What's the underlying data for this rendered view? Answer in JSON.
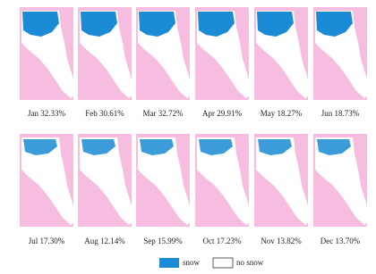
{
  "panels": [
    {
      "label": "Jan 32.33%"
    },
    {
      "label": "Feb 30.61%"
    },
    {
      "label": "Mar 32.72%"
    },
    {
      "label": "Apr 29.91%"
    },
    {
      "label": "May 18.27%"
    },
    {
      "label": "Jun 18.73%"
    },
    {
      "label": "Jul 17.30%"
    },
    {
      "label": "Aug 12.14%"
    },
    {
      "label": "Sep 15.99%"
    },
    {
      "label": "Oct 17.23%"
    },
    {
      "label": "Nov 13.82%"
    },
    {
      "label": "Dec 13.70%"
    }
  ],
  "legend": [
    {
      "label": "snow"
    },
    {
      "label": "no snow"
    }
  ]
}
